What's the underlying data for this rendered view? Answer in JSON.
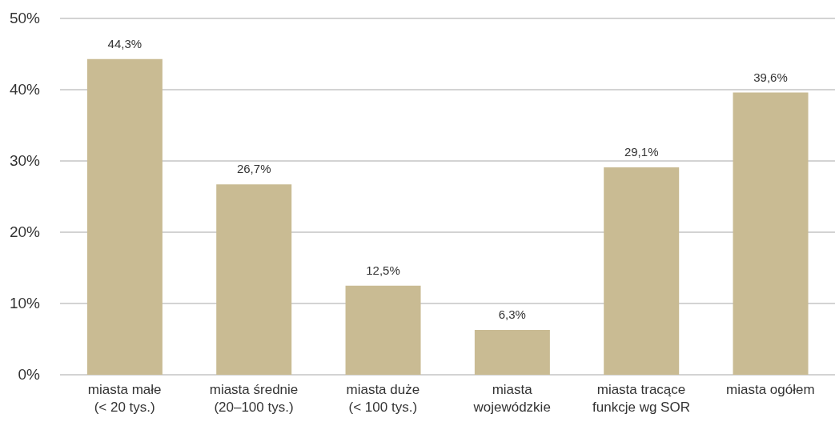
{
  "chart_data": {
    "type": "bar",
    "categories": [
      "miasta małe\n(< 20 tys.)",
      "miasta średnie\n(20–100 tys.)",
      "miasta duże\n(< 100 tys.)",
      "miasta\nwojewódzkie",
      "miasta tracące\nfunkcje wg SOR",
      "miasta ogółem"
    ],
    "values": [
      44.3,
      26.7,
      12.5,
      6.3,
      29.1,
      39.6
    ],
    "value_labels": [
      "44,3%",
      "26,7%",
      "12,5%",
      "6,3%",
      "29,1%",
      "39,6%"
    ],
    "color": "#c9bb93",
    "ylim": [
      0,
      50
    ],
    "yticks": [
      {
        "value": 0,
        "label": "0%"
      },
      {
        "value": 10,
        "label": "10%"
      },
      {
        "value": 20,
        "label": "20%"
      },
      {
        "value": 30,
        "label": "30%"
      },
      {
        "value": 40,
        "label": "40%"
      },
      {
        "value": 50,
        "label": "50%"
      }
    ],
    "grid": "y"
  }
}
